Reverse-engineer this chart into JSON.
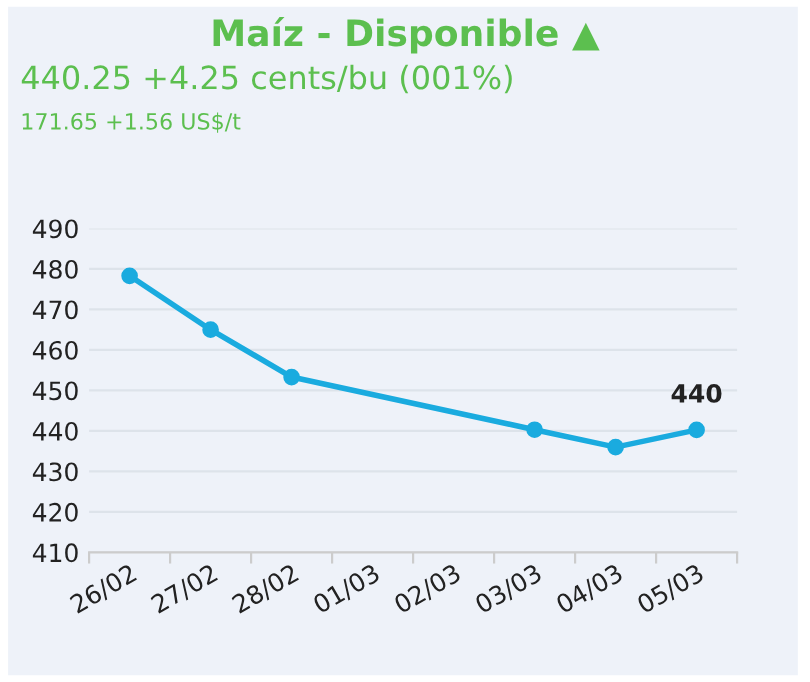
{
  "chart_data": {
    "type": "line",
    "title": "Maíz - Disponible ▲",
    "subtitle": "440.25 +4.25 cents/bu (001%)",
    "annotations": [
      "171.65 +1.56 US$/t"
    ],
    "categories": [
      "26/02",
      "27/02",
      "28/02",
      "01/03",
      "02/03",
      "03/03",
      "04/03",
      "05/03"
    ],
    "series": [
      {
        "color": "#1aabdf",
        "values": [
          478.3,
          465,
          453.3,
          null,
          null,
          440.3,
          436,
          440.25
        ],
        "value_labels": [
          null,
          null,
          null,
          null,
          null,
          null,
          null,
          "440"
        ]
      }
    ],
    "ylim": [
      410,
      490
    ],
    "yticks": [
      410,
      420,
      430,
      440,
      450,
      460,
      470,
      480,
      490
    ],
    "grid": "y",
    "marker": "circle",
    "line_style": "solid"
  }
}
